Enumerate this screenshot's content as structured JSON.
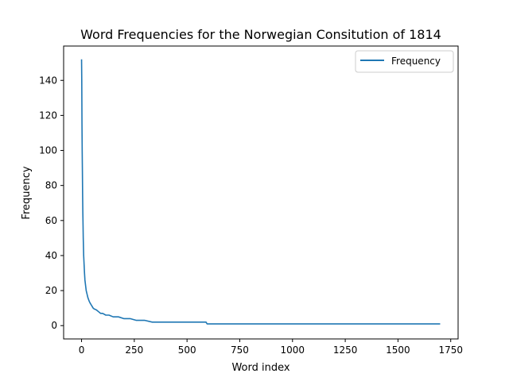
{
  "chart_data": {
    "type": "line",
    "title": "Word Frequencies for the Norwegian Consitution of 1814",
    "xlabel": "Word index",
    "ylabel": "Frequency",
    "xlim": [
      -85,
      1785
    ],
    "ylim": [
      -7.6,
      159.6
    ],
    "xticks": [
      0,
      250,
      500,
      750,
      1000,
      1250,
      1500,
      1750
    ],
    "yticks": [
      0,
      20,
      40,
      60,
      80,
      100,
      120,
      140
    ],
    "grid": false,
    "legend_position": "upper right",
    "series": [
      {
        "name": "Frequency",
        "color": "#1f77b4",
        "x": [
          0,
          1,
          2,
          3,
          4,
          5,
          6,
          7,
          8,
          10,
          12,
          14,
          16,
          18,
          20,
          22,
          24,
          26,
          28,
          30,
          33,
          36,
          40,
          45,
          50,
          55,
          60,
          70,
          80,
          90,
          100,
          115,
          130,
          150,
          175,
          200,
          230,
          260,
          300,
          335,
          400,
          500,
          590,
          595,
          700,
          1000,
          1300,
          1600,
          1700
        ],
        "y": [
          152,
          140,
          115,
          100,
          88,
          75,
          65,
          58,
          50,
          40,
          35,
          30,
          26,
          24,
          22,
          20,
          19,
          18,
          17,
          16,
          15,
          14,
          13,
          12,
          11,
          10,
          9.5,
          9,
          8,
          7,
          7,
          6,
          6,
          5,
          5,
          4,
          4,
          3,
          3,
          2,
          2,
          2,
          2,
          1,
          1,
          1,
          1,
          1,
          1
        ]
      }
    ]
  }
}
